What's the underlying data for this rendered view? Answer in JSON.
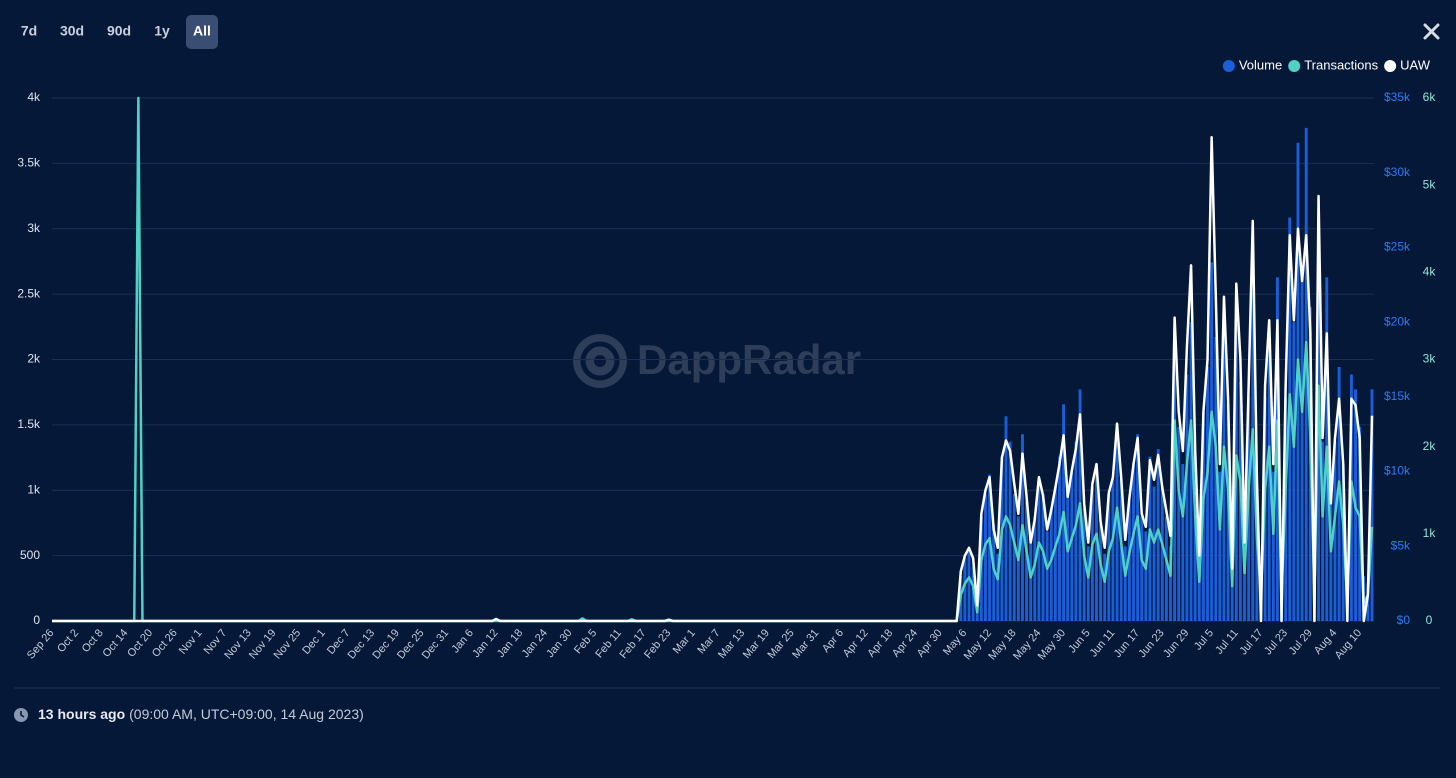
{
  "controls": {
    "ranges": [
      "7d",
      "30d",
      "90d",
      "1y",
      "All"
    ],
    "active_range_index": 4
  },
  "watermark": "DappRadar",
  "footer": {
    "updated": "13 hours ago",
    "timestamp": "(09:00 AM, UTC+09:00, 14 Aug 2023)"
  },
  "chart_data": {
    "type": "combo",
    "grid": true,
    "legend": "top-right",
    "categories": [
      "Sep 26",
      null,
      null,
      null,
      null,
      null,
      "Oct 2",
      null,
      null,
      null,
      null,
      null,
      "Oct 8",
      null,
      null,
      null,
      null,
      null,
      "Oct 14",
      null,
      null,
      null,
      null,
      null,
      "Oct 20",
      null,
      null,
      null,
      null,
      null,
      "Oct 26",
      null,
      null,
      null,
      null,
      null,
      "Nov 1",
      null,
      null,
      null,
      null,
      null,
      "Nov 7",
      null,
      null,
      null,
      null,
      null,
      "Nov 13",
      null,
      null,
      null,
      null,
      null,
      "Nov 19",
      null,
      null,
      null,
      null,
      null,
      "Nov 25",
      null,
      null,
      null,
      null,
      null,
      "Dec 1",
      null,
      null,
      null,
      null,
      null,
      "Dec 7",
      null,
      null,
      null,
      null,
      null,
      "Dec 13",
      null,
      null,
      null,
      null,
      null,
      "Dec 19",
      null,
      null,
      null,
      null,
      null,
      "Dec 25",
      null,
      null,
      null,
      null,
      null,
      "Dec 31",
      null,
      null,
      null,
      null,
      null,
      "Jan 6",
      null,
      null,
      null,
      null,
      null,
      "Jan 12",
      null,
      null,
      null,
      null,
      null,
      "Jan 18",
      null,
      null,
      null,
      null,
      null,
      "Jan 24",
      null,
      null,
      null,
      null,
      null,
      "Jan 30",
      null,
      null,
      null,
      null,
      null,
      "Feb 5",
      null,
      null,
      null,
      null,
      null,
      "Feb 11",
      null,
      null,
      null,
      null,
      null,
      "Feb 17",
      null,
      null,
      null,
      null,
      null,
      "Feb 23",
      null,
      null,
      null,
      null,
      null,
      "Mar 1",
      null,
      null,
      null,
      null,
      null,
      "Mar 7",
      null,
      null,
      null,
      null,
      null,
      "Mar 13",
      null,
      null,
      null,
      null,
      null,
      "Mar 19",
      null,
      null,
      null,
      null,
      null,
      "Mar 25",
      null,
      null,
      null,
      null,
      null,
      "Mar 31",
      null,
      null,
      null,
      null,
      null,
      "Apr 6",
      null,
      null,
      null,
      null,
      null,
      "Apr 12",
      null,
      null,
      null,
      null,
      null,
      "Apr 18",
      null,
      null,
      null,
      null,
      null,
      "Apr 24",
      null,
      null,
      null,
      null,
      null,
      "Apr 30",
      null,
      null,
      null,
      null,
      null,
      "May 6",
      null,
      null,
      null,
      null,
      null,
      "May 12",
      null,
      null,
      null,
      null,
      null,
      "May 18",
      null,
      null,
      null,
      null,
      null,
      "May 24",
      null,
      null,
      null,
      null,
      null,
      "May 30",
      null,
      null,
      null,
      null,
      null,
      "Jun 5",
      null,
      null,
      null,
      null,
      null,
      "Jun 11",
      null,
      null,
      null,
      null,
      null,
      "Jun 17",
      null,
      null,
      null,
      null,
      null,
      "Jun 23",
      null,
      null,
      null,
      null,
      null,
      "Jun 29",
      null,
      null,
      null,
      null,
      null,
      "Jul 5",
      null,
      null,
      null,
      null,
      null,
      "Jul 11",
      null,
      null,
      null,
      null,
      null,
      "Jul 17",
      null,
      null,
      null,
      null,
      null,
      "Jul 23",
      null,
      null,
      null,
      null,
      null,
      "Jul 29",
      null,
      null,
      null,
      null,
      null,
      "Aug 4",
      null,
      null,
      null,
      null,
      null,
      "Aug 10",
      null,
      null,
      null
    ],
    "ylim": [
      0,
      4000
    ],
    "yticks": [
      0,
      500,
      {
        "value": 1000,
        "label": "1k"
      },
      {
        "value": 1500,
        "label": "1.5k"
      },
      {
        "value": 2000,
        "label": "2k"
      },
      {
        "value": 2500,
        "label": "2.5k"
      },
      {
        "value": 3000,
        "label": "3k"
      },
      {
        "value": 3500,
        "label": "3.5k"
      },
      {
        "value": 4000,
        "label": "4k"
      }
    ],
    "y2lim": [
      0,
      35000
    ],
    "y2ticks": [
      {
        "value": 0,
        "label": "$0"
      },
      {
        "value": 5000,
        "label": "$5k"
      },
      {
        "value": 10000,
        "label": "$10k"
      },
      {
        "value": 15000,
        "label": "$15k"
      },
      {
        "value": 20000,
        "label": "$20k"
      },
      {
        "value": 25000,
        "label": "$25k"
      },
      {
        "value": 30000,
        "label": "$30k"
      },
      {
        "value": 35000,
        "label": "$35k"
      }
    ],
    "y3lim": [
      0,
      6000
    ],
    "y3ticks": [
      0,
      {
        "value": 1000,
        "label": "1k"
      },
      {
        "value": 2000,
        "label": "2k"
      },
      {
        "value": 3000,
        "label": "3k"
      },
      {
        "value": 4000,
        "label": "4k"
      },
      {
        "value": 5000,
        "label": "5k"
      },
      {
        "value": 6000,
        "label": "6k"
      }
    ],
    "series": [
      {
        "name": "Volume",
        "color": "#1a5fd9",
        "type": "bar",
        "axis": "y2",
        "values": [
          0,
          0,
          0,
          0,
          0,
          0,
          0,
          0,
          0,
          0,
          0,
          0,
          0,
          0,
          0,
          0,
          0,
          0,
          0,
          0,
          0,
          0,
          0,
          0,
          0,
          0,
          0,
          0,
          0,
          0,
          0,
          0,
          0,
          0,
          0,
          0,
          0,
          0,
          0,
          0,
          0,
          0,
          0,
          0,
          0,
          0,
          0,
          0,
          0,
          0,
          0,
          0,
          0,
          0,
          0,
          0,
          0,
          0,
          0,
          0,
          0,
          0,
          0,
          0,
          0,
          0,
          0,
          0,
          0,
          0,
          0,
          0,
          0,
          0,
          0,
          0,
          0,
          0,
          0,
          0,
          0,
          0,
          0,
          0,
          0,
          0,
          0,
          0,
          0,
          0,
          0,
          0,
          0,
          0,
          0,
          0,
          0,
          0,
          0,
          0,
          0,
          0,
          0,
          0,
          0,
          0,
          0,
          0,
          0,
          0,
          0,
          0,
          0,
          0,
          0,
          0,
          0,
          0,
          0,
          0,
          0,
          0,
          0,
          0,
          0,
          0,
          0,
          0,
          0,
          0,
          0,
          0,
          0,
          0,
          0,
          0,
          0,
          0,
          0,
          0,
          0,
          0,
          0,
          0,
          0,
          0,
          0,
          0,
          0,
          0,
          0,
          0,
          0,
          0,
          0,
          0,
          0,
          0,
          0,
          0,
          0,
          0,
          0,
          0,
          0,
          0,
          0,
          0,
          0,
          0,
          0,
          0,
          0,
          0,
          0,
          0,
          0,
          0,
          0,
          0,
          0,
          0,
          0,
          0,
          0,
          0,
          0,
          0,
          0,
          0,
          0,
          0,
          0,
          0,
          0,
          0,
          0,
          0,
          0,
          0,
          0,
          0,
          0,
          0,
          0,
          0,
          0,
          0,
          0,
          0,
          0,
          0,
          0,
          0,
          0,
          0,
          0,
          0,
          0,
          0,
          0,
          3000,
          4200,
          4800,
          3600,
          800,
          7000,
          8500,
          9800,
          6500,
          4500,
          11000,
          13700,
          12000,
          8500,
          7000,
          12500,
          8000,
          5500,
          7000,
          9500,
          8500,
          6000,
          7500,
          9000,
          11000,
          14500,
          8500,
          10000,
          12000,
          15500,
          7500,
          5000,
          9000,
          10500,
          6500,
          4500,
          8500,
          9500,
          13000,
          9500,
          5000,
          8000,
          10500,
          12500,
          7000,
          6000,
          11000,
          9000,
          11500,
          9000,
          7000,
          5000,
          17500,
          13000,
          10500,
          16500,
          20000,
          11000,
          4500,
          14000,
          17000,
          24000,
          19000,
          10000,
          19500,
          14500,
          4000,
          20000,
          16000,
          5500,
          15000,
          22000,
          9000,
          3000,
          15000,
          19000,
          10000,
          23000,
          3000,
          15000,
          27000,
          20000,
          32000,
          23000,
          33000,
          21000,
          3000,
          26000,
          12000,
          23000,
          8000,
          12000,
          17000,
          10500,
          2000,
          16500,
          15500,
          13000,
          3000,
          2500,
          15500
        ]
      },
      {
        "name": "Transactions",
        "color": "#4fd1c5",
        "type": "line",
        "axis": "y3",
        "values": [
          0,
          0,
          0,
          0,
          0,
          0,
          0,
          0,
          0,
          0,
          0,
          0,
          0,
          0,
          0,
          0,
          0,
          0,
          0,
          0,
          0,
          6000,
          0,
          0,
          0,
          0,
          0,
          0,
          0,
          0,
          0,
          0,
          0,
          0,
          0,
          0,
          0,
          0,
          0,
          0,
          0,
          0,
          0,
          0,
          0,
          0,
          0,
          0,
          0,
          0,
          0,
          0,
          0,
          0,
          0,
          0,
          0,
          0,
          0,
          0,
          0,
          0,
          0,
          0,
          0,
          0,
          0,
          0,
          0,
          0,
          0,
          0,
          0,
          0,
          0,
          0,
          0,
          0,
          0,
          0,
          0,
          0,
          0,
          0,
          0,
          0,
          0,
          0,
          0,
          0,
          0,
          0,
          0,
          0,
          0,
          0,
          0,
          0,
          0,
          0,
          0,
          0,
          0,
          0,
          0,
          0,
          0,
          0,
          0,
          0,
          0,
          0,
          0,
          0,
          0,
          0,
          0,
          0,
          0,
          0,
          0,
          0,
          0,
          0,
          0,
          0,
          0,
          0,
          0,
          30,
          0,
          0,
          0,
          0,
          0,
          0,
          0,
          0,
          0,
          0,
          0,
          20,
          0,
          0,
          0,
          0,
          0,
          0,
          0,
          0,
          0,
          0,
          0,
          0,
          0,
          0,
          0,
          0,
          0,
          0,
          0,
          0,
          0,
          0,
          0,
          0,
          0,
          0,
          0,
          0,
          0,
          0,
          0,
          0,
          0,
          0,
          0,
          0,
          0,
          0,
          0,
          0,
          0,
          0,
          0,
          0,
          0,
          0,
          0,
          0,
          0,
          0,
          0,
          0,
          0,
          0,
          0,
          0,
          0,
          0,
          0,
          0,
          0,
          0,
          0,
          0,
          0,
          0,
          0,
          0,
          0,
          0,
          0,
          0,
          0,
          0,
          0,
          0,
          0,
          0,
          0,
          300,
          430,
          500,
          400,
          100,
          700,
          880,
          950,
          600,
          480,
          1050,
          1200,
          1100,
          900,
          700,
          1100,
          800,
          500,
          650,
          900,
          800,
          600,
          700,
          850,
          1000,
          1250,
          800,
          950,
          1100,
          1350,
          750,
          500,
          880,
          1000,
          650,
          450,
          800,
          950,
          1300,
          900,
          520,
          780,
          1000,
          1200,
          700,
          600,
          1050,
          900,
          1050,
          880,
          700,
          520,
          2300,
          1500,
          1200,
          1800,
          2300,
          1200,
          450,
          1400,
          1700,
          2400,
          2000,
          1050,
          2000,
          1500,
          400,
          1900,
          1600,
          550,
          1500,
          2200,
          950,
          300,
          1500,
          2000,
          1000,
          2300,
          300,
          1500,
          2600,
          2000,
          3000,
          2400,
          3200,
          2100,
          300,
          2700,
          1200,
          2000,
          800,
          1200,
          1600,
          1100,
          200,
          1600,
          1300,
          1200,
          200,
          300,
          1080
        ]
      },
      {
        "name": "UAW",
        "color": "#ffffff",
        "type": "line",
        "axis": "y",
        "values": [
          0,
          0,
          0,
          0,
          0,
          0,
          0,
          0,
          0,
          0,
          0,
          0,
          0,
          0,
          0,
          0,
          0,
          0,
          0,
          0,
          0,
          0,
          0,
          0,
          0,
          0,
          0,
          0,
          0,
          0,
          0,
          0,
          0,
          0,
          0,
          0,
          0,
          0,
          0,
          0,
          0,
          0,
          0,
          0,
          0,
          0,
          0,
          0,
          0,
          0,
          0,
          0,
          0,
          0,
          0,
          0,
          0,
          0,
          0,
          0,
          0,
          0,
          0,
          0,
          0,
          0,
          0,
          0,
          0,
          0,
          0,
          0,
          0,
          0,
          0,
          0,
          0,
          0,
          0,
          0,
          0,
          0,
          0,
          0,
          0,
          0,
          0,
          0,
          0,
          0,
          0,
          0,
          0,
          0,
          0,
          0,
          0,
          0,
          0,
          0,
          0,
          0,
          0,
          0,
          0,
          0,
          0,
          0,
          15,
          0,
          0,
          0,
          0,
          0,
          0,
          0,
          0,
          0,
          0,
          0,
          0,
          0,
          0,
          0,
          0,
          0,
          0,
          0,
          0,
          0,
          0,
          0,
          0,
          0,
          0,
          0,
          0,
          0,
          0,
          0,
          0,
          0,
          0,
          0,
          0,
          0,
          0,
          0,
          0,
          0,
          10,
          0,
          0,
          0,
          0,
          0,
          0,
          0,
          0,
          0,
          0,
          0,
          0,
          0,
          0,
          0,
          0,
          0,
          0,
          0,
          0,
          0,
          0,
          0,
          0,
          0,
          0,
          0,
          0,
          0,
          0,
          0,
          0,
          0,
          0,
          0,
          0,
          0,
          0,
          0,
          0,
          0,
          0,
          0,
          0,
          0,
          0,
          0,
          0,
          0,
          0,
          0,
          0,
          0,
          0,
          0,
          0,
          0,
          0,
          0,
          0,
          0,
          0,
          0,
          0,
          0,
          0,
          0,
          0,
          0,
          0,
          380,
          500,
          560,
          480,
          120,
          820,
          1000,
          1100,
          700,
          560,
          1250,
          1380,
          1300,
          1050,
          820,
          1280,
          950,
          600,
          780,
          1100,
          960,
          700,
          850,
          1020,
          1200,
          1420,
          950,
          1150,
          1320,
          1580,
          900,
          600,
          1050,
          1200,
          760,
          560,
          980,
          1100,
          1510,
          1100,
          620,
          940,
          1200,
          1400,
          820,
          720,
          1230,
          1080,
          1270,
          1020,
          840,
          650,
          2320,
          1600,
          1300,
          2100,
          2720,
          1300,
          500,
          1600,
          2000,
          3700,
          2500,
          1200,
          2480,
          1700,
          400,
          2580,
          2000,
          600,
          1800,
          3060,
          1100,
          0,
          1800,
          2300,
          1200,
          2300,
          0,
          1800,
          2950,
          2300,
          3000,
          2600,
          2950,
          2200,
          0,
          3250,
          1400,
          2200,
          900,
          1400,
          1700,
          1200,
          0,
          1700,
          1650,
          1400,
          0,
          200,
          1570
        ]
      }
    ]
  }
}
